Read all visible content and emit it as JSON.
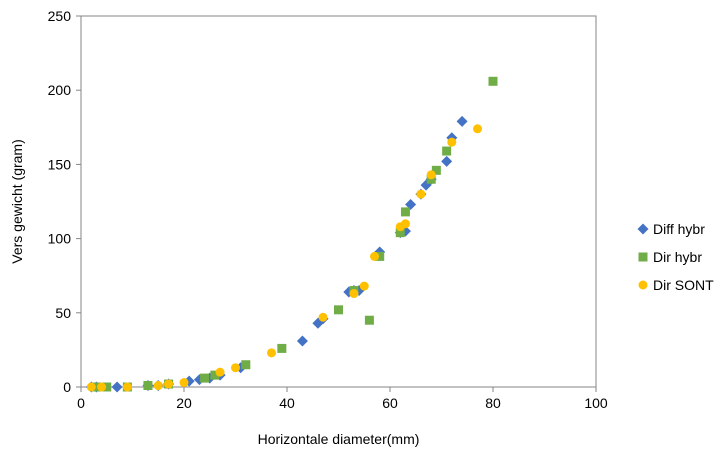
{
  "chart_data": {
    "type": "scatter",
    "title": "",
    "xlabel": "Horizontale diameter(mm)",
    "ylabel": "Vers gewicht (gram)",
    "xlim": [
      0,
      100
    ],
    "ylim": [
      0,
      250
    ],
    "xticks": [
      0,
      20,
      40,
      60,
      80,
      100
    ],
    "yticks": [
      0,
      50,
      100,
      150,
      200,
      250
    ],
    "xtick_labels": [
      "0",
      "20",
      "40",
      "60",
      "80",
      "100"
    ],
    "ytick_labels": [
      "0",
      "50",
      "100",
      "150",
      "200",
      "250"
    ],
    "grid": false,
    "legend_position": "right",
    "series": [
      {
        "name": "Diff hybr",
        "marker": "diamond",
        "color": "#4472C4",
        "x": [
          2,
          3,
          7,
          13,
          15,
          17,
          21,
          23,
          25,
          27,
          31,
          43,
          46,
          47,
          52,
          53,
          54,
          58,
          62,
          63,
          64,
          66,
          67,
          68,
          71,
          72,
          74
        ],
        "y": [
          0,
          0,
          0,
          1,
          1,
          2,
          4,
          5,
          6,
          8,
          13,
          31,
          43,
          46,
          64,
          65,
          65,
          91,
          104,
          105,
          123,
          130,
          136,
          140,
          152,
          168,
          179
        ]
      },
      {
        "name": "Dir hybr",
        "marker": "square",
        "color": "#70AD47",
        "x": [
          3,
          5,
          9,
          13,
          17,
          24,
          26,
          32,
          39,
          50,
          53,
          56,
          58,
          62,
          63,
          68,
          69,
          71,
          80
        ],
        "y": [
          0,
          0,
          0,
          1,
          2,
          6,
          8,
          15,
          26,
          52,
          65,
          45,
          88,
          104,
          118,
          140,
          146,
          159,
          206
        ]
      },
      {
        "name": "Dir SONT",
        "marker": "circle",
        "color": "#FFC000",
        "x": [
          2,
          4,
          9,
          15,
          17,
          20,
          27,
          30,
          37,
          47,
          53,
          55,
          57,
          62,
          63,
          66,
          68,
          72,
          77
        ],
        "y": [
          0,
          0,
          0,
          1,
          2,
          3,
          10,
          13,
          23,
          47,
          63,
          68,
          88,
          108,
          110,
          130,
          143,
          165,
          174
        ]
      }
    ]
  }
}
